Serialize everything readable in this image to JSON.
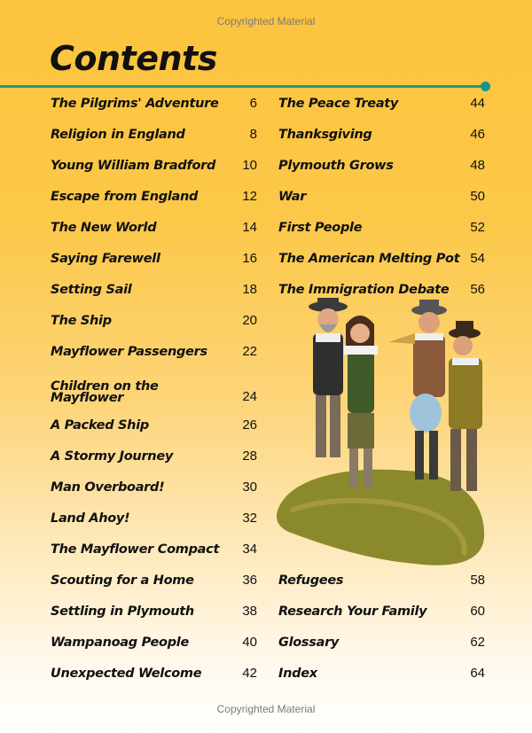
{
  "watermark": "Copyrighted Material",
  "title": "Contents",
  "left": [
    {
      "title": "The Pilgrims' Adventure",
      "page": "6"
    },
    {
      "title": "Religion in England",
      "page": "8"
    },
    {
      "title": "Young William Bradford",
      "page": "10"
    },
    {
      "title": "Escape from England",
      "page": "12"
    },
    {
      "title": "The New World",
      "page": "14"
    },
    {
      "title": "Saying Farewell",
      "page": "16"
    },
    {
      "title": "Setting Sail",
      "page": "18"
    },
    {
      "title": "The Ship",
      "page": "20"
    },
    {
      "title": "Mayflower Passengers",
      "page": "22"
    },
    {
      "title": "Children on the Mayflower",
      "page": "24"
    },
    {
      "title": "A Packed Ship",
      "page": "26"
    },
    {
      "title": "A Stormy Journey",
      "page": "28"
    },
    {
      "title": "Man Overboard!",
      "page": "30"
    },
    {
      "title": "Land Ahoy!",
      "page": "32"
    },
    {
      "title": "The Mayflower Compact",
      "page": "34"
    },
    {
      "title": "Scouting for a Home",
      "page": "36"
    },
    {
      "title": "Settling in Plymouth",
      "page": "38"
    },
    {
      "title": "Wampanoag People",
      "page": "40"
    },
    {
      "title": "Unexpected Welcome",
      "page": "42"
    }
  ],
  "right": [
    {
      "title": "The Peace Treaty",
      "page": "44"
    },
    {
      "title": "Thanksgiving",
      "page": "46"
    },
    {
      "title": "Plymouth Grows",
      "page": "48"
    },
    {
      "title": "War",
      "page": "50"
    },
    {
      "title": "First People",
      "page": "52"
    },
    {
      "title": "The American Melting Pot",
      "page": "54"
    },
    {
      "title": "The Immigration Debate",
      "page": "56"
    },
    {
      "title": "Refugees",
      "page": "58"
    },
    {
      "title": "Research Your Family",
      "page": "60"
    },
    {
      "title": "Glossary",
      "page": "62"
    },
    {
      "title": "Index",
      "page": "64"
    }
  ],
  "colors": {
    "accent_line": "#1f9a7a",
    "dot": "#13968f",
    "background_top": "#fcc43e"
  },
  "illustration": "pilgrims-group-illustration"
}
